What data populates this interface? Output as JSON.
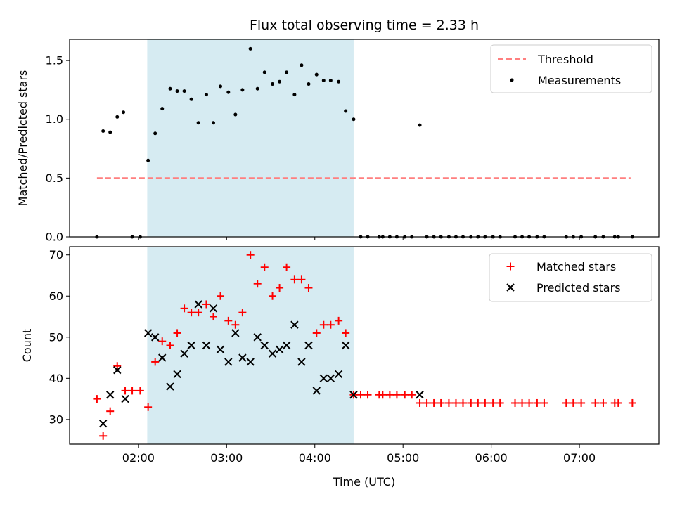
{
  "title": "Flux total observing time = 2.33 h",
  "colors": {
    "threshold": "#ff7f7f",
    "matched": "#ff0000",
    "predicted": "#000000",
    "measurement": "#000000",
    "shade": "#add8e6"
  },
  "chart_data": [
    {
      "type": "scatter",
      "name": "ratio",
      "xlabel": "",
      "ylabel": "Matched/Predicted stars",
      "xlim": [
        1.22,
        7.9
      ],
      "ylim": [
        0.0,
        1.68
      ],
      "yticks": [
        0.0,
        0.5,
        1.0,
        1.5
      ],
      "ytick_labels": [
        "0.0",
        "0.5",
        "1.0",
        "1.5"
      ],
      "grid": false,
      "legend": "top-right",
      "shaded_span": [
        2.1,
        4.44
      ],
      "threshold": {
        "label": "Threshold",
        "value": 0.5,
        "x_range": [
          1.53,
          7.58
        ]
      },
      "measurements": {
        "label": "Measurements",
        "x": [
          1.53,
          1.6,
          1.68,
          1.76,
          1.83,
          1.93,
          2.02,
          2.11,
          2.19,
          2.27,
          2.36,
          2.44,
          2.52,
          2.6,
          2.68,
          2.77,
          2.85,
          2.93,
          3.02,
          3.1,
          3.18,
          3.27,
          3.35,
          3.43,
          3.52,
          3.6,
          3.68,
          3.77,
          3.85,
          3.93,
          4.02,
          4.1,
          4.18,
          4.27,
          4.35,
          4.44,
          4.52,
          4.6,
          4.73,
          4.77,
          4.85,
          4.93,
          5.02,
          5.1,
          5.19,
          5.27,
          5.35,
          5.43,
          5.52,
          5.6,
          5.68,
          5.77,
          5.85,
          5.93,
          6.02,
          6.1,
          6.27,
          6.35,
          6.43,
          6.52,
          6.6,
          6.85,
          6.93,
          7.02,
          7.18,
          7.27,
          7.4,
          7.44,
          7.6
        ],
        "y": [
          0.0,
          0.9,
          0.89,
          1.02,
          1.06,
          0.0,
          0.0,
          0.65,
          0.88,
          1.09,
          1.26,
          1.24,
          1.24,
          1.17,
          0.97,
          1.21,
          0.97,
          1.28,
          1.23,
          1.04,
          1.25,
          1.6,
          1.26,
          1.4,
          1.3,
          1.32,
          1.4,
          1.21,
          1.46,
          1.3,
          1.38,
          1.33,
          1.33,
          1.32,
          1.07,
          1.0,
          0.0,
          0.0,
          0.0,
          0.0,
          0.0,
          0.0,
          0.0,
          0.0,
          0.95,
          0.0,
          0.0,
          0.0,
          0.0,
          0.0,
          0.0,
          0.0,
          0.0,
          0.0,
          0.0,
          0.0,
          0.0,
          0.0,
          0.0,
          0.0,
          0.0,
          0.0,
          0.0,
          0.0,
          0.0,
          0.0,
          0.0,
          0.0,
          0.0
        ]
      }
    },
    {
      "type": "scatter",
      "name": "counts",
      "xlabel": "Time (UTC)",
      "ylabel": "Count",
      "xlim": [
        1.22,
        7.9
      ],
      "ylim": [
        24,
        72
      ],
      "yticks": [
        30,
        40,
        50,
        60,
        70
      ],
      "ytick_labels": [
        "30",
        "40",
        "50",
        "60",
        "70"
      ],
      "xticks": [
        2,
        3,
        4,
        5,
        6,
        7
      ],
      "xtick_labels": [
        "02:00",
        "03:00",
        "04:00",
        "05:00",
        "06:00",
        "07:00"
      ],
      "grid": false,
      "legend": "top-right",
      "shaded_span": [
        2.1,
        4.44
      ],
      "series": [
        {
          "name": "Matched stars",
          "marker": "plus",
          "x": [
            1.53,
            1.6,
            1.68,
            1.76,
            1.85,
            1.93,
            2.02,
            2.11,
            2.19,
            2.27,
            2.36,
            2.44,
            2.52,
            2.6,
            2.68,
            2.77,
            2.85,
            2.93,
            3.02,
            3.1,
            3.18,
            3.27,
            3.35,
            3.43,
            3.52,
            3.6,
            3.68,
            3.77,
            3.85,
            3.93,
            4.02,
            4.1,
            4.18,
            4.27,
            4.35,
            4.44,
            4.52,
            4.6,
            4.73,
            4.77,
            4.85,
            4.93,
            5.02,
            5.1,
            5.19,
            5.27,
            5.35,
            5.43,
            5.52,
            5.6,
            5.68,
            5.77,
            5.85,
            5.93,
            6.02,
            6.1,
            6.27,
            6.35,
            6.43,
            6.52,
            6.6,
            6.85,
            6.93,
            7.02,
            7.18,
            7.27,
            7.4,
            7.44,
            7.6
          ],
          "y": [
            35,
            26,
            32,
            43,
            37,
            37,
            37,
            33,
            44,
            49,
            48,
            51,
            57,
            56,
            56,
            58,
            55,
            60,
            54,
            53,
            56,
            70,
            63,
            67,
            60,
            62,
            67,
            64,
            64,
            62,
            51,
            53,
            53,
            54,
            51,
            36,
            36,
            36,
            36,
            36,
            36,
            36,
            36,
            36,
            34,
            34,
            34,
            34,
            34,
            34,
            34,
            34,
            34,
            34,
            34,
            34,
            34,
            34,
            34,
            34,
            34,
            34,
            34,
            34,
            34,
            34,
            34,
            34,
            34
          ]
        },
        {
          "name": "Predicted stars",
          "marker": "x",
          "x": [
            1.6,
            1.68,
            1.76,
            1.85,
            2.11,
            2.19,
            2.27,
            2.36,
            2.44,
            2.52,
            2.6,
            2.68,
            2.77,
            2.85,
            2.93,
            3.02,
            3.1,
            3.18,
            3.27,
            3.35,
            3.43,
            3.52,
            3.6,
            3.68,
            3.77,
            3.85,
            3.93,
            4.02,
            4.1,
            4.18,
            4.27,
            4.35,
            4.44,
            5.19
          ],
          "y": [
            29,
            36,
            42,
            35,
            51,
            50,
            45,
            38,
            41,
            46,
            48,
            58,
            48,
            57,
            47,
            44,
            51,
            45,
            44,
            50,
            48,
            46,
            47,
            48,
            53,
            44,
            48,
            37,
            40,
            40,
            41,
            48,
            36,
            36
          ]
        }
      ]
    }
  ]
}
